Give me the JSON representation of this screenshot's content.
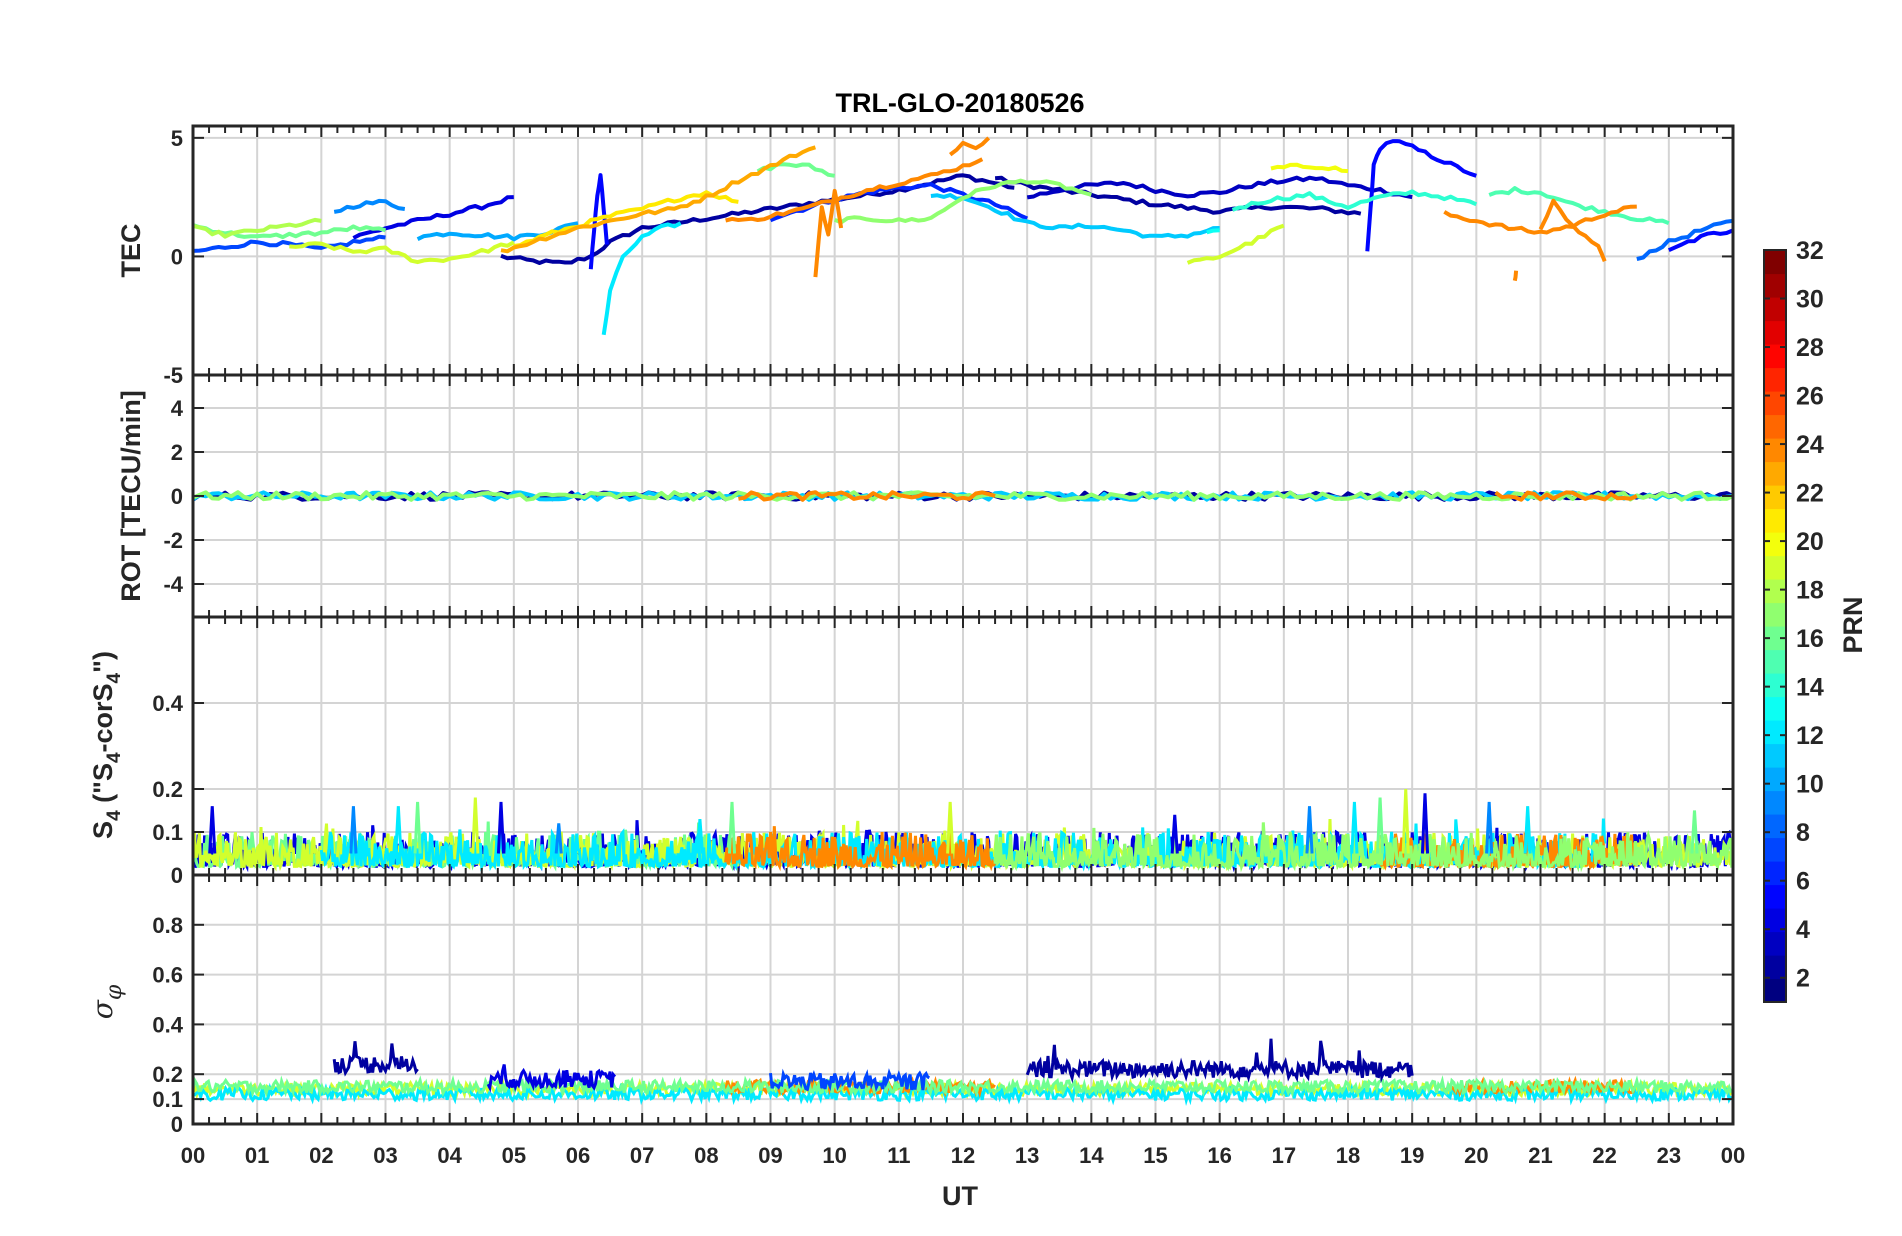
{
  "chart_data": {
    "type": "line",
    "title": "TRL-GLO-20180526",
    "xlabel": "UT",
    "x_ticks": [
      "00",
      "01",
      "02",
      "03",
      "04",
      "05",
      "06",
      "07",
      "08",
      "09",
      "10",
      "11",
      "12",
      "13",
      "14",
      "15",
      "16",
      "17",
      "18",
      "19",
      "20",
      "21",
      "22",
      "23",
      "00"
    ],
    "x_range": [
      0,
      24
    ],
    "colorbar": {
      "label": "PRN",
      "range": [
        1,
        32
      ],
      "ticks": [
        "2",
        "4",
        "6",
        "8",
        "10",
        "12",
        "14",
        "16",
        "18",
        "20",
        "22",
        "24",
        "26",
        "28",
        "30",
        "32"
      ],
      "colormap": "jet"
    },
    "panels": [
      {
        "name": "tec",
        "ylabel": "TEC",
        "ylim": [
          -5,
          5.5
        ],
        "yticks": [
          -5,
          0,
          5
        ],
        "ytick_labels": [
          "-5",
          "0",
          "5"
        ],
        "series": [
          {
            "prn": 2,
            "x": [
              4.8,
              5.3,
              5.8,
              6.2,
              6.5,
              7.0,
              8.0,
              9.0,
              10.0,
              11.0,
              12.0,
              12.8
            ],
            "y": [
              0.0,
              -0.2,
              -0.3,
              0.0,
              0.6,
              1.2,
              1.6,
              2.0,
              2.4,
              2.8,
              3.4,
              2.9
            ]
          },
          {
            "prn": 2,
            "x": [
              12.5,
              13.0,
              14.0,
              15.0,
              16.0,
              16.8,
              17.6,
              18.2
            ],
            "y": [
              3.3,
              3.0,
              2.6,
              2.2,
              1.9,
              2.1,
              2.0,
              1.8
            ]
          },
          {
            "prn": 3,
            "x": [
              13.0,
              13.5,
              14.0,
              14.5,
              15.0,
              15.5,
              16.0,
              16.5,
              17.0,
              17.5,
              18.0,
              18.5,
              19.0
            ],
            "y": [
              2.5,
              2.8,
              3.0,
              3.1,
              2.8,
              2.6,
              2.7,
              3.0,
              3.2,
              3.3,
              3.0,
              2.8,
              2.5
            ]
          },
          {
            "prn": 4,
            "x": [
              2.5,
              3.0,
              3.5,
              4.0,
              4.5,
              5.0
            ],
            "y": [
              0.8,
              1.2,
              1.5,
              1.8,
              2.1,
              2.5
            ]
          },
          {
            "prn": 5,
            "x": [
              6.2,
              6.25,
              6.3,
              6.35,
              6.4,
              6.45
            ],
            "y": [
              -0.5,
              1.0,
              2.5,
              3.4,
              2.0,
              0.5
            ]
          },
          {
            "prn": 5,
            "x": [
              18.3,
              18.35,
              18.4,
              18.5,
              18.7,
              19.0,
              19.5,
              20.0
            ],
            "y": [
              0.2,
              2.0,
              3.8,
              4.6,
              4.9,
              4.6,
              4.0,
              3.4
            ]
          },
          {
            "prn": 5,
            "x": [
              23.0,
              23.3,
              23.6,
              24.0
            ],
            "y": [
              0.2,
              0.6,
              0.9,
              1.1
            ]
          },
          {
            "prn": 6,
            "x": [
              9.0,
              9.5,
              10.0,
              10.5,
              11.0,
              11.5,
              12.0,
              12.5,
              13.0
            ],
            "y": [
              1.6,
              2.0,
              2.4,
              2.7,
              2.9,
              3.0,
              2.6,
              2.2,
              1.6
            ]
          },
          {
            "prn": 7,
            "x": [
              0.0,
              0.5,
              1.0,
              1.5,
              2.0,
              2.5,
              3.0
            ],
            "y": [
              0.2,
              0.4,
              0.6,
              0.5,
              0.3,
              0.6,
              0.8
            ]
          },
          {
            "prn": 8,
            "x": [
              22.5,
              23.0,
              23.5,
              24.0
            ],
            "y": [
              -0.1,
              0.6,
              1.1,
              1.5
            ]
          },
          {
            "prn": 9,
            "x": [
              2.2,
              2.6,
              3.0,
              3.3
            ],
            "y": [
              1.9,
              2.2,
              2.3,
              2.0
            ]
          },
          {
            "prn": 10,
            "x": [
              3.5,
              4.0,
              4.5,
              5.0,
              5.5,
              6.0
            ],
            "y": [
              0.8,
              1.0,
              0.9,
              0.8,
              1.0,
              1.4
            ]
          },
          {
            "prn": 11,
            "x": [
              11.5,
              12.0,
              12.5,
              13.0,
              13.5,
              14.0,
              14.5,
              15.0,
              15.5,
              16.0
            ],
            "y": [
              2.6,
              2.5,
              2.0,
              1.4,
              1.2,
              1.3,
              1.1,
              0.8,
              0.9,
              1.2
            ]
          },
          {
            "prn": 12,
            "x": [
              6.4,
              6.5,
              6.7,
              7.0,
              7.3,
              7.6
            ],
            "y": [
              -3.3,
              -1.5,
              0.0,
              0.8,
              1.2,
              1.4
            ]
          },
          {
            "prn": 13,
            "x": [
              15.8,
              16.0
            ],
            "y": [
              1.0,
              1.1
            ]
          },
          {
            "prn": 14,
            "x": [
              16.2,
              16.8,
              17.4,
              17.6,
              18.0,
              18.5,
              19.0,
              19.5,
              20.0
            ],
            "y": [
              2.0,
              2.4,
              2.6,
              2.4,
              2.1,
              2.5,
              2.7,
              2.5,
              2.2
            ]
          },
          {
            "prn": 15,
            "x": [
              20.2,
              20.6,
              21.0,
              21.5,
              22.0,
              22.5,
              23.0
            ],
            "y": [
              2.6,
              2.8,
              2.7,
              2.2,
              1.9,
              1.6,
              1.4
            ]
          },
          {
            "prn": 16,
            "x": [
              8.8,
              9.2,
              9.6,
              10.0
            ],
            "y": [
              3.6,
              3.9,
              3.8,
              3.4
            ]
          },
          {
            "prn": 16,
            "x": [
              0.0,
              0.5,
              1.0,
              1.5,
              2.0,
              2.5,
              3.0
            ],
            "y": [
              1.3,
              1.0,
              0.8,
              0.9,
              1.0,
              1.2,
              1.1
            ]
          },
          {
            "prn": 17,
            "x": [
              10.0,
              10.5,
              11.0,
              11.5,
              12.0,
              12.5,
              13.0,
              13.5,
              14.0
            ],
            "y": [
              1.5,
              1.6,
              1.5,
              1.6,
              2.5,
              3.0,
              3.2,
              3.0,
              2.6
            ]
          },
          {
            "prn": 18,
            "x": [
              0.0,
              0.5,
              1.0,
              1.5,
              2.0
            ],
            "y": [
              1.2,
              0.9,
              1.1,
              1.3,
              1.5
            ]
          },
          {
            "prn": 19,
            "x": [
              1.5,
              2.0,
              2.5,
              3.0,
              3.5,
              4.0,
              4.5,
              5.0
            ],
            "y": [
              0.4,
              0.5,
              0.2,
              0.3,
              -0.2,
              -0.1,
              0.2,
              0.6
            ]
          },
          {
            "prn": 19,
            "x": [
              15.5,
              16.0,
              16.5,
              17.0
            ],
            "y": [
              -0.3,
              0.0,
              0.6,
              1.3
            ]
          },
          {
            "prn": 20,
            "x": [
              16.8,
              17.2,
              17.6,
              18.0
            ],
            "y": [
              3.7,
              3.8,
              3.8,
              3.6
            ]
          },
          {
            "prn": 21,
            "x": [
              5.0,
              5.5,
              6.0,
              6.5,
              7.0,
              7.5,
              8.0,
              8.5
            ],
            "y": [
              0.4,
              0.9,
              1.3,
              1.7,
              2.0,
              2.4,
              2.7,
              2.3
            ]
          },
          {
            "prn": 23,
            "x": [
              4.8,
              5.5,
              6.0,
              6.5,
              7.0,
              7.5,
              8.0,
              8.5,
              9.0,
              9.4,
              9.7
            ],
            "y": [
              0.2,
              0.8,
              1.2,
              1.5,
              1.8,
              2.0,
              2.5,
              3.2,
              3.8,
              4.3,
              4.6
            ]
          },
          {
            "prn": 24,
            "x": [
              8.3,
              8.6,
              9.0,
              9.5,
              10.0,
              10.5,
              11.0,
              11.5,
              12.0,
              12.3
            ],
            "y": [
              1.6,
              1.5,
              1.7,
              2.0,
              2.4,
              2.8,
              3.1,
              3.4,
              3.8,
              4.1
            ]
          },
          {
            "prn": 24,
            "x": [
              9.7,
              9.8,
              9.9,
              10.0,
              10.1
            ],
            "y": [
              -0.8,
              2.0,
              1.0,
              2.8,
              1.2
            ]
          },
          {
            "prn": 24,
            "x": [
              11.8,
              12.0,
              12.2,
              12.4
            ],
            "y": [
              4.3,
              4.8,
              4.5,
              5.0
            ]
          },
          {
            "prn": 24,
            "x": [
              19.5,
              20.0,
              20.5,
              21.0,
              21.5,
              22.0,
              22.5
            ],
            "y": [
              1.8,
              1.5,
              1.2,
              1.0,
              1.3,
              1.8,
              2.1
            ]
          },
          {
            "prn": 24,
            "x": [
              20.6,
              20.62
            ],
            "y": [
              -1.1,
              -0.6
            ]
          },
          {
            "prn": 24,
            "x": [
              21.0,
              21.2,
              21.4,
              21.9,
              22.0
            ],
            "y": [
              1.2,
              2.3,
              1.5,
              0.4,
              -0.2
            ]
          }
        ]
      },
      {
        "name": "rot",
        "ylabel": "ROT [TECU/min]",
        "ylim": [
          -5.5,
          5.5
        ],
        "yticks": [
          -4,
          -2,
          0,
          2,
          4
        ],
        "ytick_labels": [
          "-4",
          "-2",
          "0",
          "2",
          "4"
        ],
        "series": [
          {
            "prn": 2,
            "x": [
              0,
              24
            ],
            "y": [
              0,
              0
            ]
          },
          {
            "prn": 11,
            "x": [
              0,
              24
            ],
            "y": [
              0,
              0
            ]
          },
          {
            "prn": 17,
            "x": [
              0,
              24
            ],
            "y": [
              0,
              0
            ]
          },
          {
            "prn": 24,
            "x": [
              8.5,
              12.5
            ],
            "y": [
              0,
              0
            ]
          },
          {
            "prn": 24,
            "x": [
              20.3,
              22.5
            ],
            "y": [
              0,
              0
            ]
          }
        ]
      },
      {
        "name": "s4",
        "ylabel": "S4 (\"S4-corS4\")",
        "ylabel_parts": {
          "s": "S",
          "sub4a": "4",
          "mid": " (\"S",
          "sub4b": "4",
          "dash": "-corS",
          "sub4c": "4",
          "end": "\")"
        },
        "ylim": [
          0,
          0.6
        ],
        "yticks": [
          0,
          0.1,
          0.2,
          0.4
        ],
        "ytick_labels": [
          "0",
          "0.1",
          "0.2",
          "0.4"
        ],
        "baseline_range": [
          0.02,
          0.1
        ],
        "peaks": [
          {
            "x": 0.3,
            "y": 0.16
          },
          {
            "x": 2.5,
            "y": 0.16
          },
          {
            "x": 3.2,
            "y": 0.16
          },
          {
            "x": 3.5,
            "y": 0.17
          },
          {
            "x": 4.4,
            "y": 0.18
          },
          {
            "x": 4.8,
            "y": 0.17
          },
          {
            "x": 5.7,
            "y": 0.12
          },
          {
            "x": 7.9,
            "y": 0.13
          },
          {
            "x": 8.4,
            "y": 0.17
          },
          {
            "x": 11.8,
            "y": 0.17
          },
          {
            "x": 15.3,
            "y": 0.14
          },
          {
            "x": 17.4,
            "y": 0.16
          },
          {
            "x": 18.1,
            "y": 0.17
          },
          {
            "x": 18.5,
            "y": 0.18
          },
          {
            "x": 18.9,
            "y": 0.2
          },
          {
            "x": 19.2,
            "y": 0.19
          },
          {
            "x": 20.2,
            "y": 0.17
          },
          {
            "x": 20.8,
            "y": 0.16
          },
          {
            "x": 23.4,
            "y": 0.15
          }
        ],
        "segments": [
          {
            "prn": 4,
            "x0": 0,
            "x1": 24
          },
          {
            "prn": 16,
            "x0": 0,
            "x1": 8.5
          },
          {
            "prn": 19,
            "x0": 0,
            "x1": 24
          },
          {
            "prn": 12,
            "x0": 2,
            "x1": 22
          },
          {
            "prn": 24,
            "x0": 8.3,
            "x1": 12.5
          },
          {
            "prn": 24,
            "x0": 18.5,
            "x1": 22.5
          },
          {
            "prn": 17,
            "x0": 12.5,
            "x1": 24
          }
        ]
      },
      {
        "name": "sigma_phi",
        "ylabel": "σφ",
        "ylabel_parts": {
          "base": "σ",
          "sub": "φ"
        },
        "ylim": [
          0,
          1
        ],
        "yticks": [
          0,
          0.1,
          0.2,
          0.4,
          0.6,
          0.8
        ],
        "ytick_labels": [
          "0",
          "0.1",
          "0.2",
          "0.4",
          "0.6",
          "0.8"
        ],
        "elevated_segments": [
          {
            "prn": 2,
            "x0": 2.2,
            "x1": 3.5,
            "level": 0.24,
            "peak": 0.35
          },
          {
            "prn": 4,
            "x0": 4.6,
            "x1": 6.6,
            "level": 0.18,
            "peak": 0.24
          },
          {
            "prn": 2,
            "x0": 13.0,
            "x1": 19.0,
            "level": 0.22,
            "peak": 0.35
          },
          {
            "prn": 7,
            "x0": 9.0,
            "x1": 11.5,
            "level": 0.17,
            "peak": 0.2
          }
        ],
        "baseline_segments": [
          {
            "prn": 19,
            "x0": 0,
            "x1": 24,
            "level": 0.14
          },
          {
            "prn": 12,
            "x0": 0,
            "x1": 24,
            "level": 0.12
          },
          {
            "prn": 24,
            "x0": 8.3,
            "x1": 12.5,
            "level": 0.15
          },
          {
            "prn": 24,
            "x0": 19.5,
            "x1": 22.5,
            "level": 0.15
          },
          {
            "prn": 16,
            "x0": 0,
            "x1": 24,
            "level": 0.15
          }
        ]
      }
    ]
  }
}
